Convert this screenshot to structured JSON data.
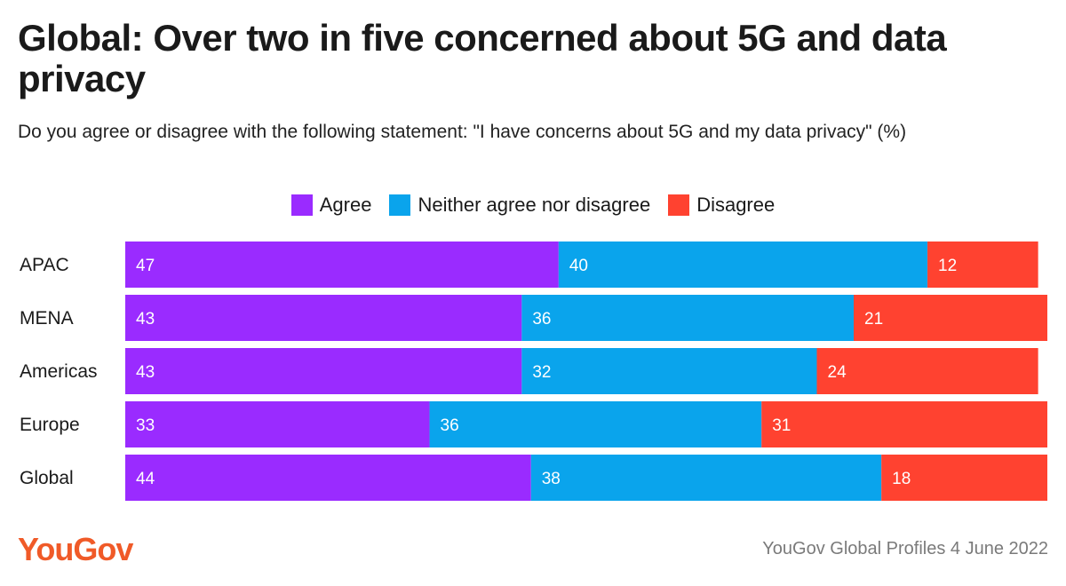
{
  "title": "Global: Over two in five concerned about 5G and data privacy",
  "subtitle": "Do you agree or disagree with the following statement: \"I have concerns about 5G and my data privacy\" (%)",
  "colors": {
    "agree": "#9a2bff",
    "neither": "#0aa4ec",
    "disagree": "#ff4230"
  },
  "logo_text": "YouGov",
  "source": "YouGov Global Profiles 4 June 2022",
  "chart_data": {
    "type": "bar",
    "orientation": "horizontal",
    "stacked": true,
    "title": "Global: Over two in five concerned about 5G and data privacy",
    "subtitle": "Do you agree or disagree with the following statement: \"I have concerns about 5G and my data privacy\" (%)",
    "xlabel": "",
    "ylabel": "",
    "legend_position": "top-center",
    "categories": [
      "APAC",
      "MENA",
      "Americas",
      "Europe",
      "Global"
    ],
    "series": [
      {
        "name": "Agree",
        "color": "#9a2bff",
        "values": [
          47,
          43,
          43,
          33,
          44
        ]
      },
      {
        "name": "Neither agree nor disagree",
        "color": "#0aa4ec",
        "values": [
          40,
          36,
          32,
          36,
          38
        ]
      },
      {
        "name": "Disagree",
        "color": "#ff4230",
        "values": [
          12,
          21,
          24,
          31,
          18
        ]
      }
    ]
  }
}
